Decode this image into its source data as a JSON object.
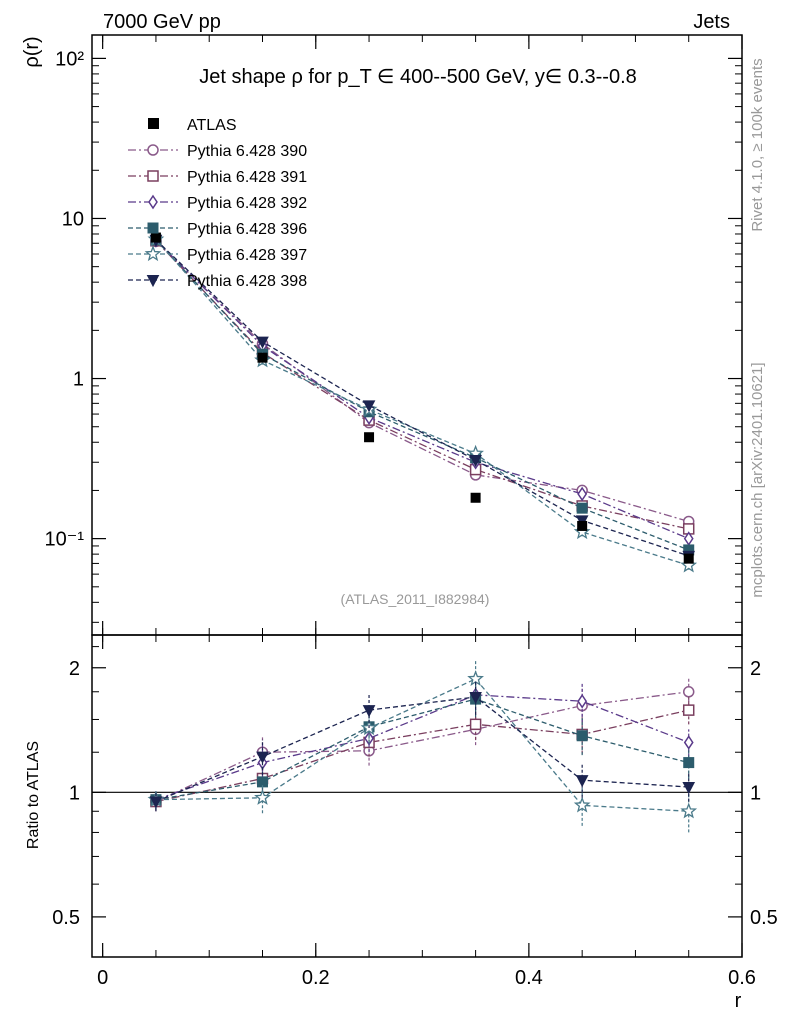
{
  "header": {
    "left": "7000 GeV pp",
    "right": "Jets"
  },
  "side_labels": {
    "rivet": "Rivet 4.1.0, ≥ 100k events",
    "mcplots": "mcplots.cern.ch [arXiv:2401.10621]"
  },
  "chart_data": {
    "type": "line",
    "title": "Jet shape ρ for p_T ∈ 400--500 GeV, y∈ 0.3--0.8",
    "analysis_tag": "(ATLAS_2011_I882984)",
    "xlabel": "r",
    "ylabel": "ρ(r)",
    "ratio_ylabel": "Ratio to ATLAS",
    "xlim": [
      -0.01,
      0.6
    ],
    "ylim": [
      0.025,
      140
    ],
    "yscale": "log",
    "ratio_ylim": [
      0.4,
      2.4
    ],
    "x_ticks": [
      "0",
      "0.2",
      "0.4",
      "0.6"
    ],
    "main_y_ticks": [
      "10⁻¹",
      "1",
      "10",
      "10²"
    ],
    "ratio_y_ticks": [
      "0.5",
      "1",
      "2"
    ],
    "x": [
      0.05,
      0.15,
      0.25,
      0.35,
      0.45,
      0.55
    ],
    "data": {
      "name": "ATLAS",
      "color": "#000000",
      "values": [
        7.6,
        1.35,
        0.43,
        0.18,
        0.12,
        0.075
      ]
    },
    "series": [
      {
        "name": "Pythia 6.428 390",
        "color": "#8a5a8a",
        "marker": "circle-open",
        "dash": "8,3,2,3",
        "values": [
          7.2,
          1.65,
          0.53,
          0.25,
          0.2,
          0.128
        ],
        "ratio": [
          0.95,
          1.25,
          1.26,
          1.42,
          1.62,
          1.75
        ],
        "ratio_err": [
          0.05,
          0.12,
          0.1,
          0.12,
          0.18,
          0.14
        ]
      },
      {
        "name": "Pythia 6.428 391",
        "color": "#7a3f5f",
        "marker": "square-open",
        "dash": "8,3,2,3",
        "values": [
          7.25,
          1.45,
          0.55,
          0.27,
          0.16,
          0.115
        ],
        "ratio": [
          0.95,
          1.08,
          1.32,
          1.46,
          1.38,
          1.58
        ],
        "ratio_err": [
          0.05,
          0.1,
          0.1,
          0.12,
          0.14,
          0.12
        ]
      },
      {
        "name": "Pythia 6.428 392",
        "color": "#5a3a8a",
        "marker": "diamond-open",
        "dash": "8,3,2,3",
        "values": [
          7.3,
          1.6,
          0.57,
          0.3,
          0.19,
          0.1
        ],
        "ratio": [
          0.96,
          1.18,
          1.35,
          1.72,
          1.66,
          1.32
        ],
        "ratio_err": [
          0.05,
          0.12,
          0.1,
          0.14,
          0.18,
          0.1
        ]
      },
      {
        "name": "Pythia 6.428 396",
        "color": "#2c5c6c",
        "marker": "square-filled",
        "dash": "5,3",
        "values": [
          7.35,
          1.42,
          0.62,
          0.32,
          0.155,
          0.085
        ],
        "ratio": [
          0.96,
          1.06,
          1.44,
          1.68,
          1.37,
          1.18
        ],
        "ratio_err": [
          0.05,
          0.1,
          0.12,
          0.16,
          0.14,
          0.1
        ]
      },
      {
        "name": "Pythia 6.428 397",
        "color": "#4a7a8a",
        "marker": "star-open",
        "dash": "5,3",
        "values": [
          7.4,
          1.3,
          0.64,
          0.34,
          0.11,
          0.068
        ],
        "ratio": [
          0.96,
          0.97,
          1.43,
          1.88,
          0.93,
          0.9
        ],
        "ratio_err": [
          0.04,
          0.08,
          0.12,
          0.2,
          0.1,
          0.1
        ]
      },
      {
        "name": "Pythia 6.428 398",
        "color": "#1c2450",
        "marker": "triangle-down-filled",
        "dash": "5,3",
        "values": [
          7.35,
          1.7,
          0.68,
          0.31,
          0.13,
          0.078
        ],
        "ratio": [
          0.95,
          1.22,
          1.58,
          1.7,
          1.07,
          1.03
        ],
        "ratio_err": [
          0.05,
          0.12,
          0.15,
          0.16,
          0.1,
          0.08
        ]
      }
    ]
  }
}
